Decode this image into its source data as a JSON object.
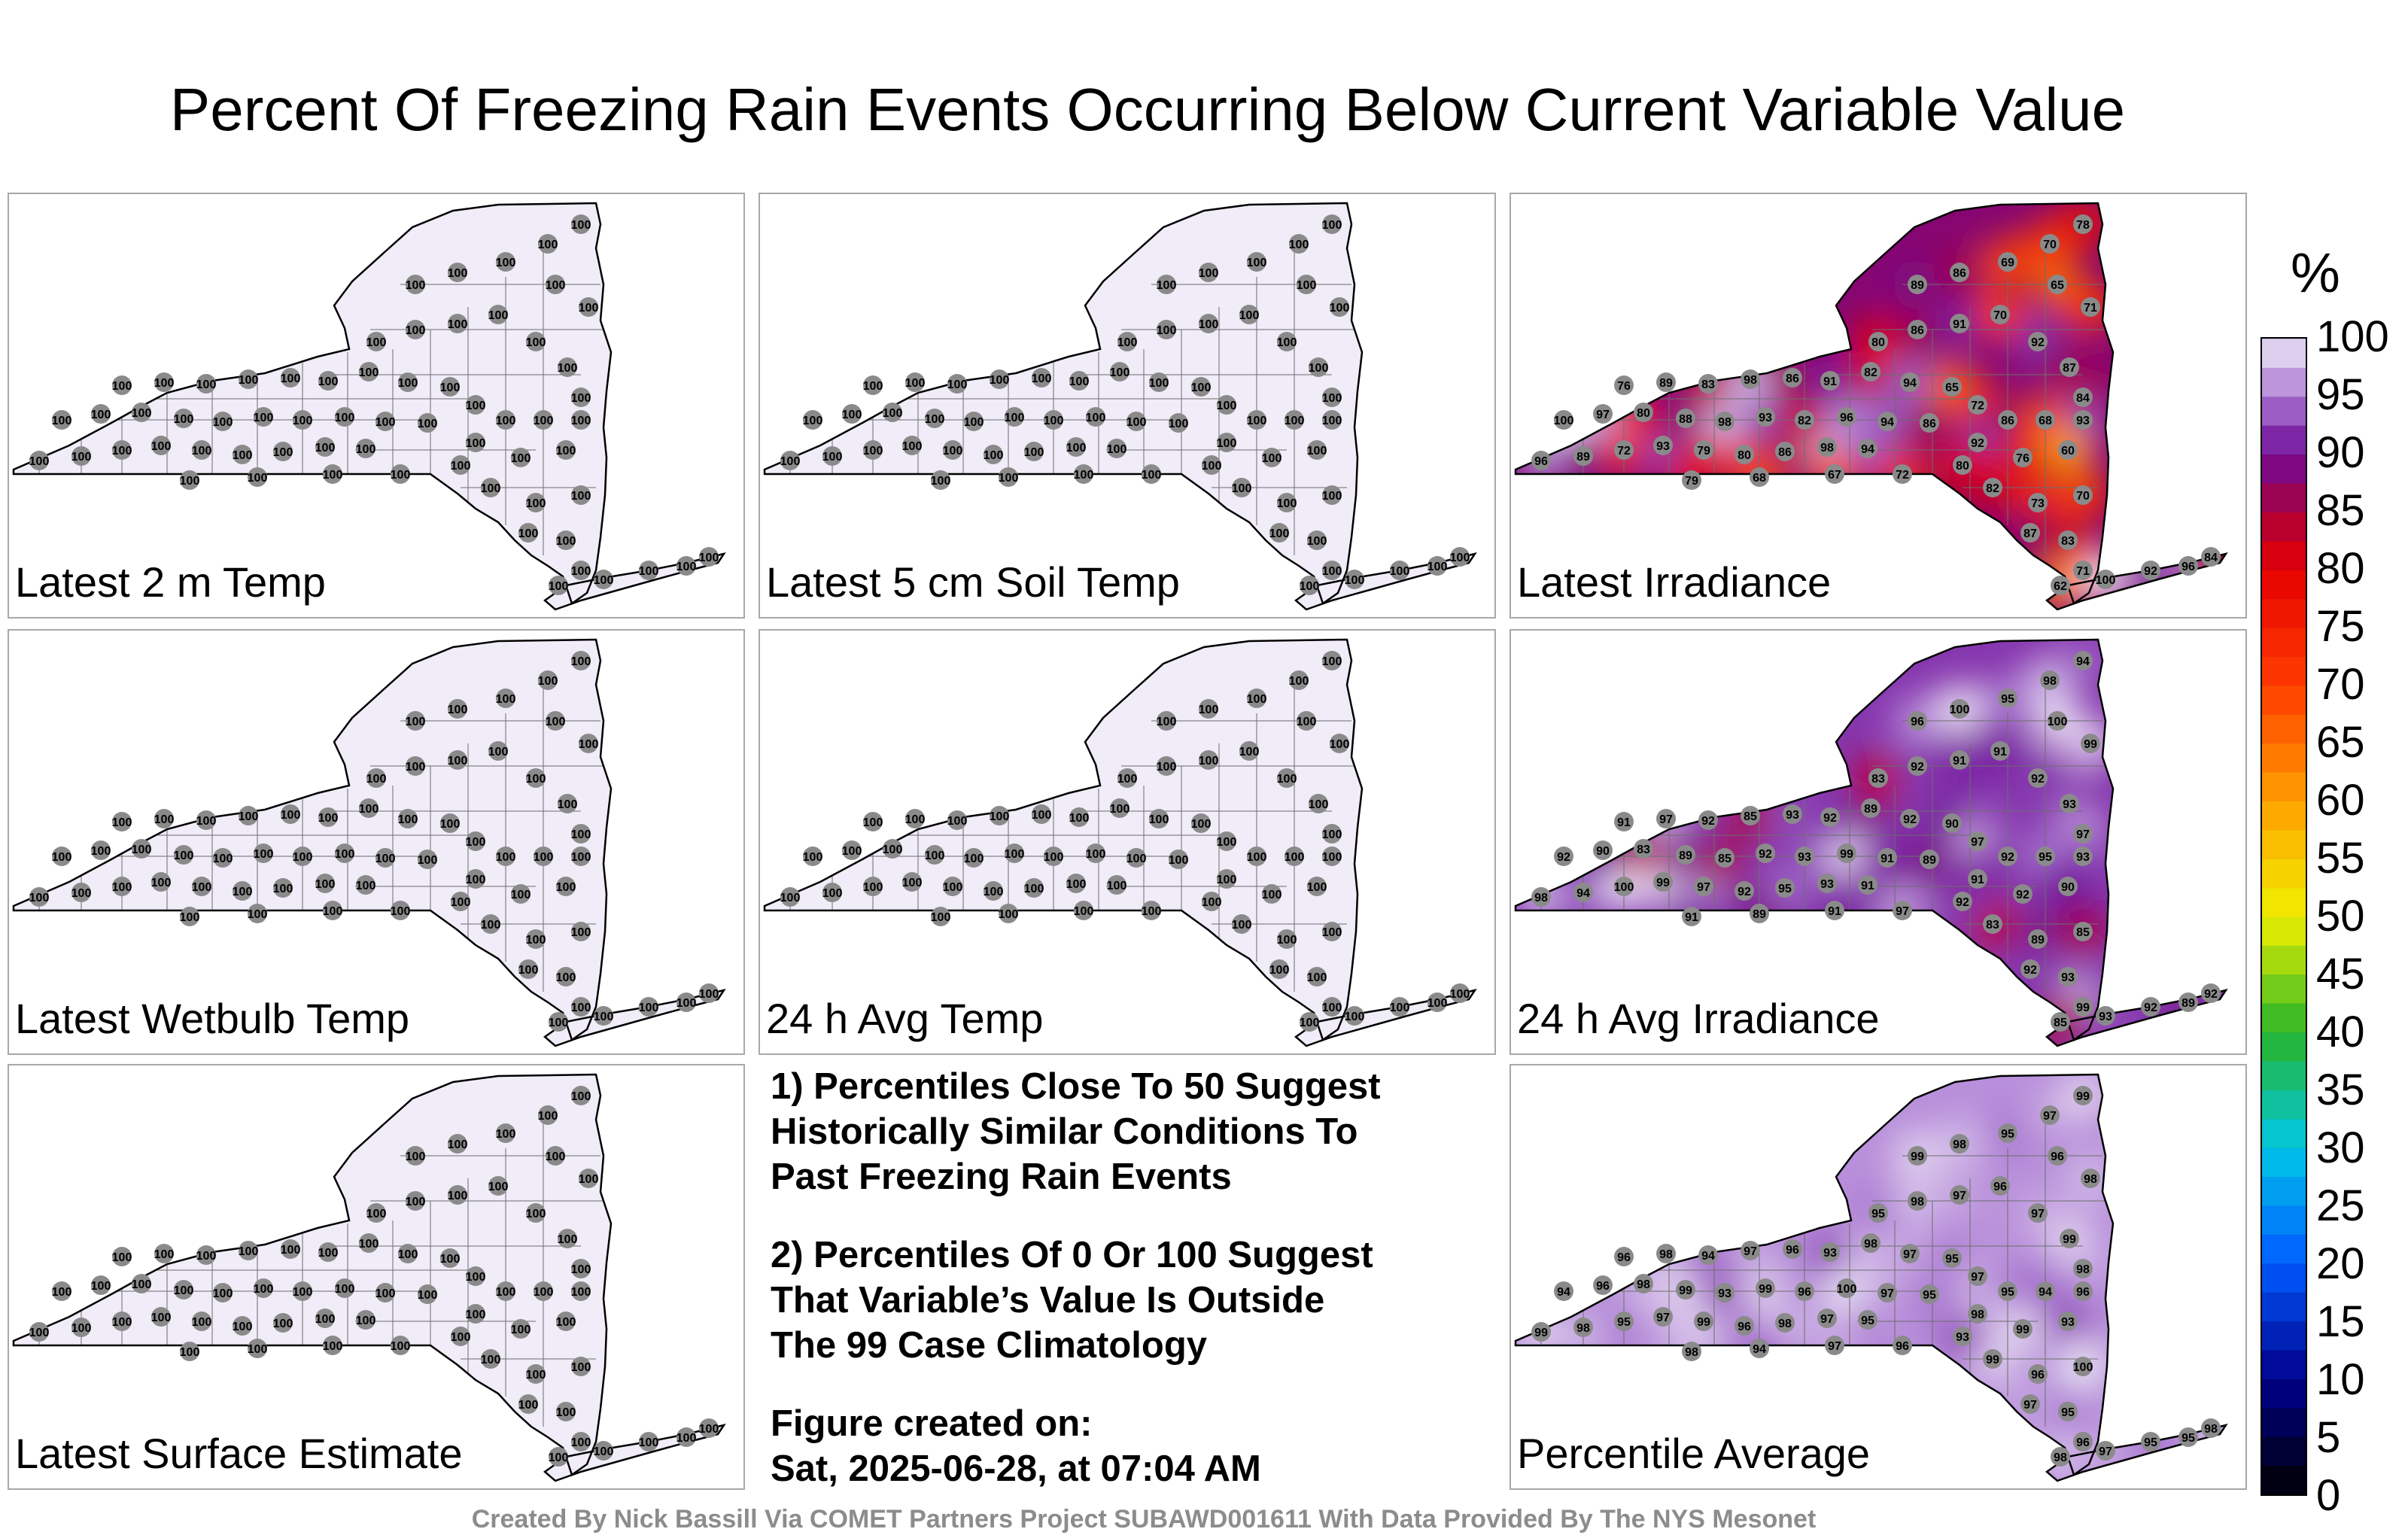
{
  "title": "Percent Of Freezing Rain Events Occurring Below Current Variable Value",
  "panels": [
    {
      "label": "Latest 2 m Temp",
      "field": "uniform"
    },
    {
      "label": "Latest 5 cm Soil Temp",
      "field": "uniform"
    },
    {
      "label": "Latest Irradiance",
      "field": "irradiance"
    },
    {
      "label": "Latest Wetbulb Temp",
      "field": "uniform"
    },
    {
      "label": "24 h Avg Temp",
      "field": "uniform"
    },
    {
      "label": "24 h Avg Irradiance",
      "field": "avg_irradiance"
    },
    {
      "label": "Latest Surface Estimate",
      "field": "uniform"
    },
    {
      "label": "Percentile Average",
      "field": "average"
    }
  ],
  "station_values": {
    "uniform": [
      "100"
    ],
    "irradiance": [
      "96",
      "89",
      "72",
      "93",
      "79",
      "80",
      "86",
      "98",
      "94",
      "100",
      "97",
      "80",
      "88",
      "98",
      "93",
      "82",
      "96",
      "94",
      "86",
      "76",
      "89",
      "83",
      "98",
      "86",
      "91",
      "82",
      "94",
      "65",
      "80",
      "86",
      "91",
      "70",
      "92",
      "87",
      "84",
      "89",
      "86",
      "69",
      "70",
      "78",
      "65",
      "71",
      "72",
      "86",
      "68",
      "93",
      "92",
      "76",
      "60",
      "82",
      "73",
      "70",
      "87",
      "83",
      "71",
      "79",
      "68",
      "67",
      "72",
      "80",
      "62",
      "100",
      "92",
      "96",
      "84"
    ],
    "avg_irradiance": [
      "98",
      "94",
      "100",
      "99",
      "97",
      "92",
      "95",
      "93",
      "91",
      "92",
      "90",
      "83",
      "89",
      "85",
      "92",
      "93",
      "99",
      "91",
      "89",
      "91",
      "97",
      "92",
      "85",
      "93",
      "92",
      "89",
      "92",
      "90",
      "83",
      "92",
      "91",
      "91",
      "92",
      "93",
      "97",
      "96",
      "100",
      "95"
    ],
    "average": [
      "99",
      "98",
      "95",
      "97",
      "99",
      "96",
      "98",
      "97",
      "95",
      "94",
      "96",
      "98",
      "99",
      "93",
      "99",
      "96",
      "100",
      "97",
      "95",
      "96",
      "98",
      "94",
      "97",
      "96",
      "93",
      "98",
      "97",
      "95",
      "95",
      "98",
      "97",
      "96",
      "97",
      "99",
      "98"
    ]
  },
  "notes": [
    "1) Percentiles Close To 50 Suggest\nHistorically Similar Conditions To\nPast Freezing Rain Events",
    "2) Percentiles Of 0 Or 100 Suggest\nThat Variable’s Value Is Outside\nThe 99 Case Climatology",
    "Figure created on:\nSat, 2025-06-28, at 07:04 AM"
  ],
  "colorbar": {
    "unit": "%",
    "ticks": [
      "0",
      "5",
      "10",
      "15",
      "20",
      "25",
      "30",
      "35",
      "40",
      "45",
      "50",
      "55",
      "60",
      "65",
      "70",
      "75",
      "80",
      "85",
      "90",
      "95",
      "100"
    ]
  },
  "created_by": "Created By Nick Bassill Via COMET Partners Project SUBAWD001611 With Data Provided By The NYS Mesonet"
}
